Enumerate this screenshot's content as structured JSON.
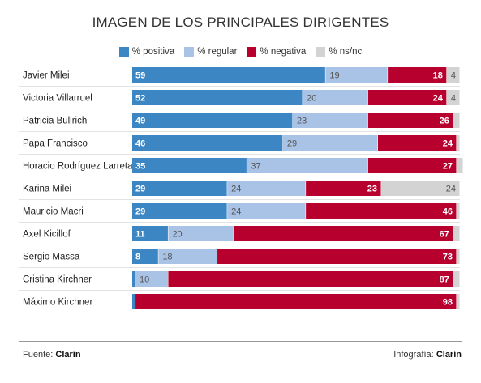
{
  "chart_data": {
    "type": "bar",
    "stacked": true,
    "orientation": "horizontal",
    "title": "IMAGEN DE LOS PRINCIPALES DIRIGENTES",
    "legend_placement": "top",
    "xlim": [
      0,
      100
    ],
    "categories": [
      "Javier Milei",
      "Victoria Villarruel",
      "Patricia Bullrich",
      "Papa Francisco",
      "Horacio Rodríguez Larreta",
      "Karina Milei",
      "Mauricio Macri",
      "Axel Kicillof",
      "Sergio Massa",
      "Cristina Kirchner",
      "Máximo Kirchner"
    ],
    "series": [
      {
        "name": "% positiva",
        "color": "#3c86c4",
        "values": [
          59,
          52,
          49,
          46,
          35,
          29,
          29,
          11,
          8,
          1,
          1
        ]
      },
      {
        "name": "% regular",
        "color": "#a9c3e6",
        "values": [
          19,
          20,
          23,
          29,
          37,
          24,
          24,
          20,
          18,
          10,
          null
        ]
      },
      {
        "name": "% negativa",
        "color": "#b8002f",
        "values": [
          18,
          24,
          26,
          24,
          27,
          23,
          46,
          67,
          73,
          87,
          98
        ]
      },
      {
        "name": "% ns/nc",
        "color": "#d3d3d3",
        "values": [
          4,
          4,
          2,
          1,
          2,
          24,
          1,
          2,
          1,
          2,
          1
        ]
      }
    ],
    "data_labels": [
      [
        "59",
        "19",
        "18",
        "4"
      ],
      [
        "52",
        "20",
        "24",
        "4"
      ],
      [
        "49",
        "23",
        "26",
        ""
      ],
      [
        "46",
        "29",
        "24",
        ""
      ],
      [
        "35",
        "37",
        "27",
        ""
      ],
      [
        "29",
        "24",
        "23",
        "24"
      ],
      [
        "29",
        "24",
        "46",
        ""
      ],
      [
        "11",
        "20",
        "67",
        ""
      ],
      [
        "8",
        "18",
        "73",
        ""
      ],
      [
        "",
        "10",
        "87",
        ""
      ],
      [
        "",
        "",
        "98",
        ""
      ]
    ]
  },
  "footer": {
    "source_label": "Fuente:",
    "source_value": "Clarín",
    "credit_label": "Infografía:",
    "credit_value": "Clarín"
  }
}
